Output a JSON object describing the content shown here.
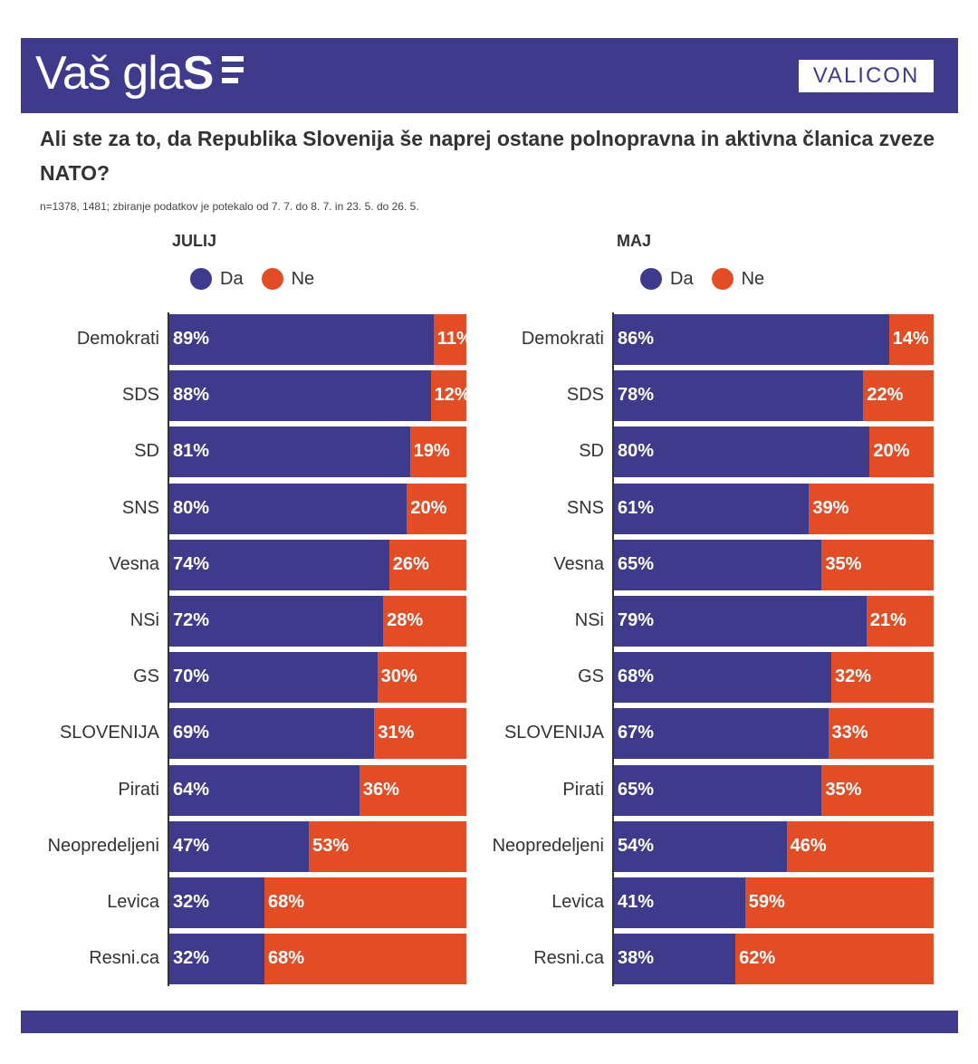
{
  "header": {
    "logo_text": "Vaš gla",
    "logo_bold": "S",
    "brand": "VALICON"
  },
  "question": "Ali ste za to, da Republika Slovenija še naprej ostane polnopravna in aktivna članica zveze NATO?",
  "note": "n=1378, 1481; zbiranje podatkov je potekalo od 7. 7. do 8. 7. in 23. 5. do 26. 5.",
  "colors": {
    "da": "#3f3b8c",
    "ne": "#e34d26",
    "header": "#3f3b8c"
  },
  "chart_data": [
    {
      "type": "bar",
      "stacked": true,
      "orientation": "horizontal",
      "title": "JULIJ",
      "categories": [
        "Demokrati",
        "SDS",
        "SD",
        "SNS",
        "Vesna",
        "NSi",
        "GS",
        "SLOVENIJA",
        "Pirati",
        "Neopredeljeni",
        "Levica",
        "Resni.ca"
      ],
      "series": [
        {
          "name": "Da",
          "color": "#3f3b8c",
          "values": [
            89,
            88,
            81,
            80,
            74,
            72,
            70,
            69,
            64,
            47,
            32,
            32
          ]
        },
        {
          "name": "Ne",
          "color": "#e34d26",
          "values": [
            11,
            12,
            19,
            20,
            26,
            28,
            30,
            31,
            36,
            53,
            68,
            68
          ]
        }
      ],
      "unit": "%",
      "xlim": [
        0,
        100
      ],
      "legend_position": "top"
    },
    {
      "type": "bar",
      "stacked": true,
      "orientation": "horizontal",
      "title": "MAJ",
      "categories": [
        "Demokrati",
        "SDS",
        "SD",
        "SNS",
        "Vesna",
        "NSi",
        "GS",
        "SLOVENIJA",
        "Pirati",
        "Neopredeljeni",
        "Levica",
        "Resni.ca"
      ],
      "series": [
        {
          "name": "Da",
          "color": "#3f3b8c",
          "values": [
            86,
            78,
            80,
            61,
            65,
            79,
            68,
            67,
            65,
            54,
            41,
            38
          ]
        },
        {
          "name": "Ne",
          "color": "#e34d26",
          "values": [
            14,
            22,
            20,
            39,
            35,
            21,
            32,
            33,
            35,
            46,
            59,
            62
          ]
        }
      ],
      "unit": "%",
      "xlim": [
        0,
        100
      ],
      "legend_position": "top"
    }
  ]
}
